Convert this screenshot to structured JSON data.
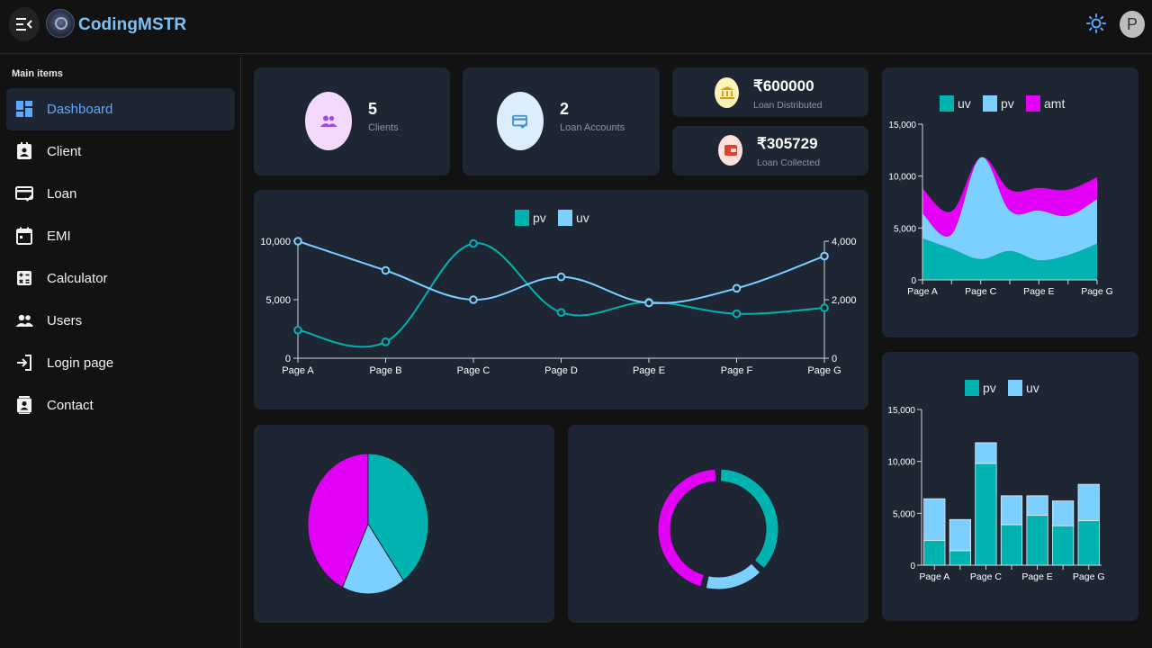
{
  "app": {
    "brand": "CodingMSTR",
    "avatar_letter": "P"
  },
  "sidebar": {
    "heading": "Main items",
    "items": [
      {
        "label": "Dashboard",
        "icon": "dashboard-icon",
        "active": true
      },
      {
        "label": "Client",
        "icon": "contact-badge-icon"
      },
      {
        "label": "Loan",
        "icon": "card-check-icon"
      },
      {
        "label": "EMI",
        "icon": "calendar-icon"
      },
      {
        "label": "Calculator",
        "icon": "calculator-icon"
      },
      {
        "label": "Users",
        "icon": "people-icon"
      },
      {
        "label": "Login page",
        "icon": "login-icon"
      },
      {
        "label": "Contact",
        "icon": "contact-card-icon"
      }
    ]
  },
  "stats": {
    "clients": {
      "value": "5",
      "label": "Clients"
    },
    "loan_accounts": {
      "value": "2",
      "label": "Loan Accounts"
    },
    "loan_distributed": {
      "value": "₹600000",
      "label": "Loan Distributed"
    },
    "loan_collected": {
      "value": "₹305729",
      "label": "Loan Collected"
    }
  },
  "colors": {
    "teal": "#00b3b0",
    "light_blue": "#7cd0ff",
    "magenta": "#e200f7",
    "card": "#1e2634",
    "accent": "#5aa8ff"
  },
  "chart_data": [
    {
      "id": "line",
      "type": "line",
      "categories": [
        "Page A",
        "Page B",
        "Page C",
        "Page D",
        "Page E",
        "Page F",
        "Page G"
      ],
      "series": [
        {
          "name": "pv",
          "axis": "left",
          "values": [
            2400,
            1398,
            9800,
            3908,
            4800,
            3800,
            4300
          ]
        },
        {
          "name": "uv",
          "axis": "right",
          "values": [
            4000,
            3000,
            2000,
            2780,
            1890,
            2390,
            3490
          ]
        }
      ],
      "y_left": {
        "range": [
          0,
          10000
        ],
        "ticks": [
          "0",
          "5,000",
          "10,000"
        ]
      },
      "y_right": {
        "range": [
          0,
          4000
        ],
        "ticks": [
          "0",
          "2,000",
          "4,000"
        ]
      },
      "legend": "top-center"
    },
    {
      "id": "area",
      "type": "area",
      "stacked": true,
      "categories": [
        "Page A",
        "Page B",
        "Page C",
        "Page D",
        "Page E",
        "Page F",
        "Page G"
      ],
      "tick_labels": [
        "Page A",
        "Page C",
        "Page E",
        "Page G"
      ],
      "series": [
        {
          "name": "uv",
          "values": [
            4000,
            3000,
            2000,
            2780,
            1890,
            2390,
            3490
          ]
        },
        {
          "name": "pv",
          "values": [
            2400,
            1398,
            9800,
            3908,
            4800,
            3800,
            4300
          ]
        },
        {
          "name": "amt",
          "values": [
            2400,
            2210,
            0,
            2000,
            2181,
            2500,
            2100
          ]
        }
      ],
      "y": {
        "range": [
          0,
          15000
        ],
        "ticks": [
          "0",
          "5,000",
          "10,000",
          "15,000"
        ]
      },
      "legend": "top-center"
    },
    {
      "id": "bar",
      "type": "bar",
      "stacked": true,
      "categories": [
        "Page A",
        "Page B",
        "Page C",
        "Page D",
        "Page E",
        "Page F",
        "Page G"
      ],
      "tick_labels": [
        "Page A",
        "Page C",
        "Page E",
        "Page G"
      ],
      "series": [
        {
          "name": "pv",
          "values": [
            2400,
            1398,
            9800,
            3908,
            4800,
            3800,
            4300
          ]
        },
        {
          "name": "uv",
          "values": [
            4000,
            3000,
            2000,
            2780,
            1890,
            2390,
            3490
          ]
        }
      ],
      "y": {
        "range": [
          0,
          15000
        ],
        "ticks": [
          "0",
          "5,000",
          "10,000",
          "15,000"
        ]
      },
      "legend": "top-center"
    },
    {
      "id": "pie",
      "type": "pie",
      "slices": [
        {
          "value": 400,
          "color": "#00b3b0"
        },
        {
          "value": 170,
          "color": "#7cd0ff"
        },
        {
          "value": 430,
          "color": "#e200f7"
        }
      ]
    },
    {
      "id": "donut",
      "type": "pie",
      "donut": true,
      "slices": [
        {
          "value": 37,
          "color": "#00b3b0"
        },
        {
          "value": 17,
          "color": "#7cd0ff"
        },
        {
          "value": 46,
          "color": "#e200f7"
        }
      ]
    }
  ]
}
